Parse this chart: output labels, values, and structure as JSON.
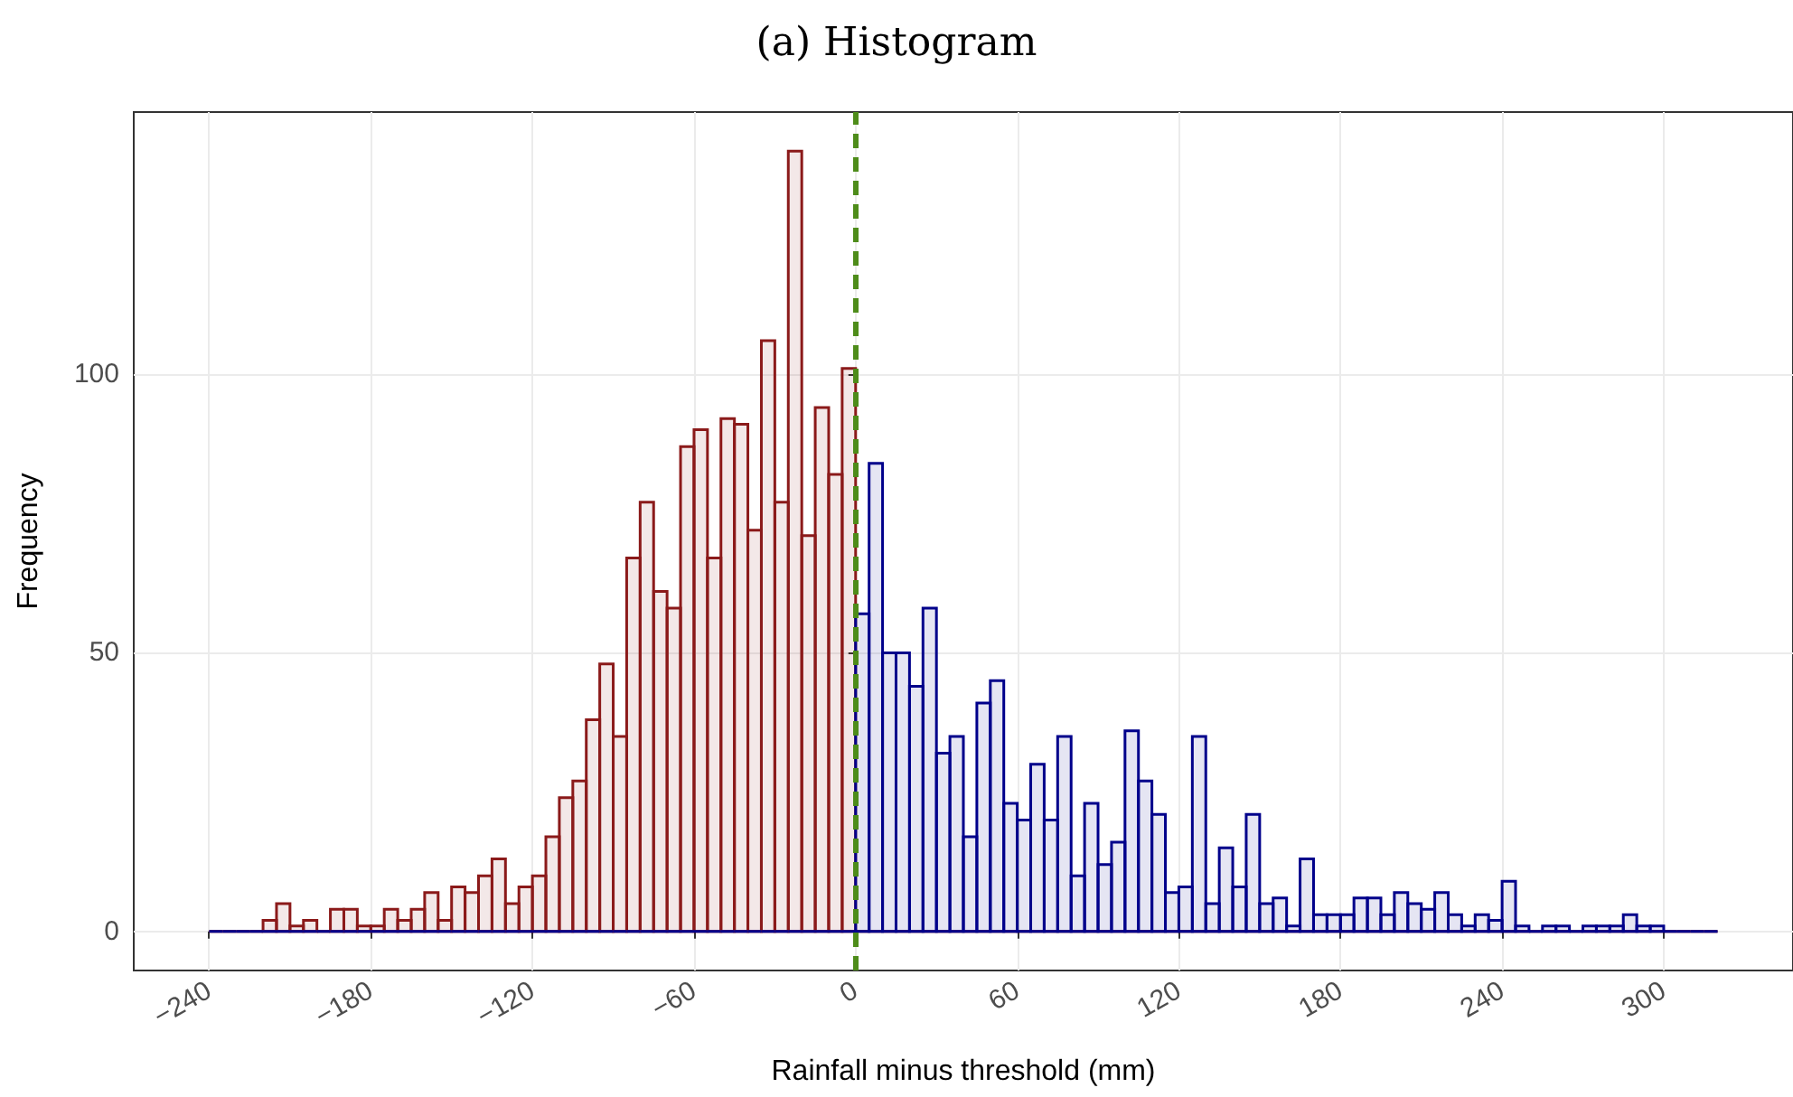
{
  "chart_data": {
    "type": "histogram",
    "title": "(a) Histogram",
    "xlabel": "Rainfall minus threshold (mm)",
    "ylabel": "Frequency",
    "bins": [
      -240,
      -235,
      -230,
      -225,
      -220,
      -215,
      -210,
      -205,
      -200,
      -195,
      -190,
      -185,
      -180,
      -175,
      -170,
      -165,
      -160,
      -155,
      -150,
      -145,
      -140,
      -135,
      -130,
      -125,
      -120,
      -115,
      -110,
      -105,
      -100,
      -95,
      -90,
      -85,
      -80,
      -75,
      -70,
      -65,
      -60,
      -55,
      -50,
      -45,
      -40,
      -35,
      -30,
      -25,
      -20,
      -15,
      -10,
      -5,
      0,
      5,
      10,
      15,
      20,
      25,
      30,
      35,
      40,
      45,
      50,
      55,
      60,
      65,
      70,
      75,
      80,
      85,
      90,
      95,
      100,
      105,
      110,
      115,
      120,
      125,
      130,
      135,
      140,
      145,
      150,
      155,
      160,
      165,
      170,
      175,
      180,
      185,
      190,
      195,
      200,
      205,
      210,
      215,
      220,
      225,
      230,
      235,
      240,
      245,
      250,
      255,
      260,
      265,
      270,
      275,
      280,
      285,
      290,
      295,
      300,
      305,
      310,
      315,
      320
    ],
    "series": [
      {
        "color": "#8b1a1a",
        "values": [
          0,
          0,
          0,
          0,
          2,
          5,
          1,
          2,
          0,
          4,
          4,
          1,
          1,
          4,
          2,
          4,
          7,
          2,
          8,
          7,
          10,
          13,
          5,
          8,
          10,
          17,
          24,
          27,
          38,
          48,
          35,
          67,
          77,
          61,
          58,
          87,
          90,
          67,
          92,
          91,
          72,
          106,
          77,
          140,
          71,
          94,
          82,
          101,
          0,
          0,
          0,
          0,
          0,
          0,
          0,
          0,
          0,
          0,
          0,
          0,
          0,
          0,
          0,
          0,
          0,
          0,
          0,
          0,
          0,
          0,
          0,
          0,
          0,
          0,
          0,
          0,
          0,
          0,
          0,
          0,
          0,
          0,
          0,
          0,
          0,
          0,
          0,
          0,
          0,
          0,
          0,
          0,
          0,
          0,
          0,
          0,
          0,
          0,
          0,
          0,
          0,
          0,
          0,
          0,
          0,
          0,
          0,
          0,
          0,
          0,
          0,
          0
        ]
      },
      {
        "color": "#00008b",
        "values": [
          0,
          0,
          0,
          0,
          0,
          0,
          0,
          0,
          0,
          0,
          0,
          0,
          0,
          0,
          0,
          0,
          0,
          0,
          0,
          0,
          0,
          0,
          0,
          0,
          0,
          0,
          0,
          0,
          0,
          0,
          0,
          0,
          0,
          0,
          0,
          0,
          0,
          0,
          0,
          0,
          0,
          0,
          0,
          0,
          0,
          0,
          0,
          0,
          57,
          84,
          50,
          50,
          44,
          58,
          32,
          35,
          17,
          41,
          45,
          23,
          20,
          30,
          20,
          35,
          10,
          23,
          12,
          16,
          36,
          27,
          21,
          7,
          8,
          35,
          5,
          15,
          8,
          21,
          5,
          6,
          1,
          13,
          3,
          3,
          3,
          6,
          6,
          3,
          7,
          5,
          4,
          7,
          3,
          1,
          3,
          2,
          9,
          1,
          0,
          1,
          1,
          0,
          1,
          1,
          1,
          3,
          1,
          1,
          0,
          0,
          0,
          0
        ]
      }
    ],
    "xlim": [
      -268,
      348
    ],
    "ylim": [
      -7,
      147
    ],
    "xticks": [
      {
        "value": -240,
        "label": "−240"
      },
      {
        "value": -180,
        "label": "−180"
      },
      {
        "value": -120,
        "label": "−120"
      },
      {
        "value": -60,
        "label": "−60"
      },
      0,
      60,
      120,
      180,
      240,
      300
    ],
    "yticks": [
      0,
      50,
      100
    ],
    "grid": true,
    "ref_lines": [
      {
        "axis": "x",
        "value": 0,
        "color": "#4e8c1a",
        "line_style": "dashed"
      }
    ]
  }
}
